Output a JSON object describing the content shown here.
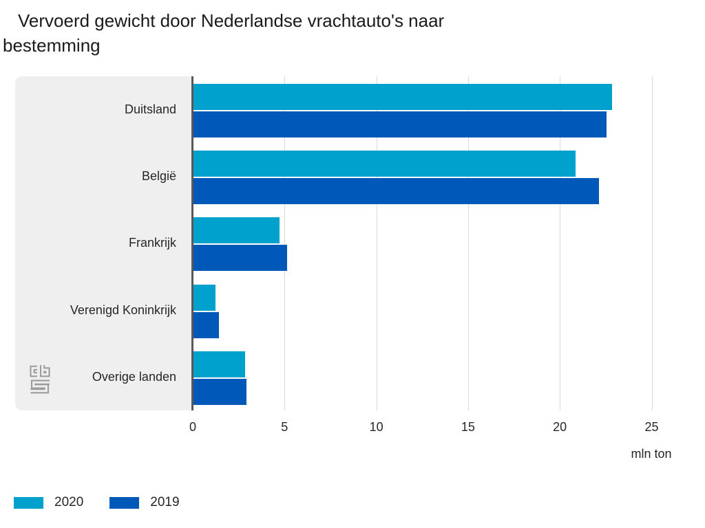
{
  "title": "Vervoerd gewicht door Nederlandse vrachtauto's naar\nbestemming",
  "chart_data": {
    "type": "bar",
    "orientation": "horizontal",
    "title": "Vervoerd gewicht door Nederlandse vrachtauto's naar bestemming",
    "categories": [
      "Duitsland",
      "België",
      "Frankrijk",
      "Verenigd Koninkrijk",
      "Overige landen"
    ],
    "series": [
      {
        "name": "2020",
        "color": "#00a1cd",
        "values": [
          22.8,
          20.8,
          4.7,
          1.2,
          2.8
        ]
      },
      {
        "name": "2019",
        "color": "#0058b8",
        "values": [
          22.5,
          22.1,
          5.1,
          1.4,
          2.9
        ]
      }
    ],
    "xlabel": "mln ton",
    "xticks": [
      0,
      5,
      10,
      15,
      20,
      25
    ],
    "xlim": [
      0,
      25
    ],
    "grid": "vertical-only",
    "legend_position": "bottom-left"
  },
  "branding": {
    "logo_name": "cbs-logo"
  }
}
